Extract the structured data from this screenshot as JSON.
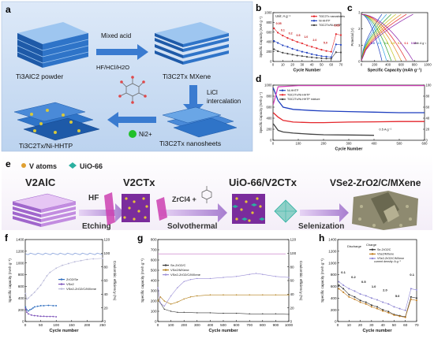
{
  "panel_labels": {
    "a": "a",
    "b": "b",
    "c": "c",
    "d": "d",
    "e": "e",
    "f": "f",
    "g": "g",
    "h": "h"
  },
  "panel_a": {
    "steps": {
      "powder": "Ti3AlC2 powder",
      "mxene": "Ti3C2Tx MXene",
      "nanosheets": "Ti3C2Tx nanosheets",
      "composite": "Ti3C2Tx/Ni-HHTP"
    },
    "arrows": {
      "acid_top": "Mixed acid",
      "acid_bottom": "HF/HCl/H2O",
      "licl_1": "LiCl",
      "licl_2": "intercalation",
      "ni_ion": "Ni2+"
    }
  },
  "panel_e": {
    "legend": {
      "v_atoms": "V atoms",
      "uio66": "UiO-66"
    },
    "steps": {
      "v2alc": "V2AlC",
      "v2ctx": "V2CTx",
      "uio_v2ctx": "UiO-66/V2CTx",
      "final": "VSe2-ZrO2/C/MXene"
    },
    "arrows": {
      "hf": "HF",
      "etching": "Etching",
      "zrcl4": "ZrCl4 +",
      "solvothermal": "Solvothermal",
      "selenization": "Selenization"
    }
  },
  "chart_data": [
    {
      "panel": "b",
      "type": "line",
      "unit_note": "Unit: A g⁻¹",
      "xlabel": "Cycle Number",
      "ylabel": "Specific Capacity (mAh g⁻¹)",
      "xlim": [
        0,
        70
      ],
      "ylim": [
        0,
        1000
      ],
      "xticks": [
        0,
        10,
        20,
        30,
        40,
        50,
        60,
        70
      ],
      "yticks": [
        0,
        200,
        400,
        600,
        800,
        1000
      ],
      "rate_labels": [
        "0.05",
        "0.1",
        "0.2",
        "0.5",
        "1.0",
        "2.0",
        "5.0",
        "0.05"
      ],
      "series": [
        {
          "name": "Ti3C2Tx nanosheets",
          "color": "#e4262b",
          "x": [
            1,
            5,
            10,
            15,
            20,
            25,
            30,
            35,
            40,
            45,
            50,
            55,
            60,
            65,
            70
          ],
          "y": [
            680,
            590,
            530,
            480,
            440,
            400,
            370,
            330,
            300,
            270,
            240,
            215,
            200,
            560,
            540
          ]
        },
        {
          "name": "Ni-HHTP",
          "color": "#1f3fbf",
          "x": [
            1,
            5,
            10,
            15,
            20,
            25,
            30,
            35,
            40,
            45,
            50,
            55,
            60,
            65,
            70
          ],
          "y": [
            420,
            380,
            330,
            300,
            260,
            230,
            200,
            180,
            150,
            130,
            110,
            100,
            90,
            350,
            340
          ]
        },
        {
          "name": "Ti3C2Tx/Ni-HHTP",
          "color": "#444444",
          "x": [
            1,
            5,
            10,
            15,
            20,
            25,
            30,
            35,
            40,
            45,
            50,
            55,
            60,
            65,
            70
          ],
          "y": [
            250,
            210,
            180,
            160,
            140,
            120,
            110,
            95,
            85,
            75,
            65,
            60,
            55,
            190,
            185
          ]
        }
      ]
    },
    {
      "panel": "c",
      "type": "line",
      "unit_note": "Unit: A g⁻¹",
      "xlabel": "Specific Capacity (mAh g⁻¹)",
      "ylabel": "Potential (V)",
      "xlim": [
        0,
        1000
      ],
      "ylim": [
        0,
        3
      ],
      "xticks": [
        0,
        200,
        400,
        600,
        800,
        1000
      ],
      "yticks": [
        0,
        1,
        2,
        3
      ],
      "rates": [
        "5.0",
        "2.0",
        "1.0",
        "0.5",
        "0.2",
        "0.1",
        "0.05"
      ],
      "colors": [
        "#1f3fbf",
        "#33a6e0",
        "#2ca02c",
        "#c4c418",
        "#e08a1e",
        "#e4262b",
        "#8a1ea8"
      ],
      "capacities": [
        310,
        380,
        450,
        520,
        600,
        680,
        780
      ]
    },
    {
      "panel": "d",
      "type": "line",
      "unit_note": "0.5 A g⁻¹",
      "xlabel": "Cycle Number",
      "ylabel": "Specific Capacity (mAh g⁻¹)",
      "y2label": "Coulombic Efficiency (%)",
      "xlim": [
        0,
        600
      ],
      "ylim": [
        0,
        1000
      ],
      "y2lim": [
        0,
        100
      ],
      "xticks": [
        0,
        100,
        200,
        300,
        400,
        500,
        600
      ],
      "yticks": [
        0,
        200,
        400,
        600,
        800,
        1000
      ],
      "y2ticks": [
        0,
        20,
        40,
        60,
        80,
        100
      ],
      "series": [
        {
          "name": "Ni-HHTP",
          "color": "#1f3fbf",
          "x": [
            1,
            20,
            40,
            80,
            150,
            200,
            300,
            400,
            500,
            600
          ],
          "y": [
            950,
            720,
            600,
            560,
            540,
            530,
            520,
            510,
            500,
            500
          ]
        },
        {
          "name": "Ti3C2Tx/Ni-HHTP",
          "color": "#e4262b",
          "x": [
            1,
            20,
            40,
            80,
            150,
            200,
            300,
            400,
            500,
            600
          ],
          "y": [
            500,
            420,
            360,
            330,
            320,
            320,
            330,
            335,
            340,
            340
          ]
        },
        {
          "name": "Ti3C2Tx/Ni-HHTP mixture",
          "color": "#444444",
          "x": [
            1,
            20,
            40,
            80,
            150,
            200,
            300,
            400
          ],
          "y": [
            300,
            180,
            150,
            130,
            110,
            100,
            95,
            90
          ]
        },
        {
          "name": "Coulombic efficiency",
          "color": "#d63ab9",
          "x": [
            1,
            20,
            100,
            200,
            300,
            400,
            500,
            600
          ],
          "y": [
            65,
            97,
            99,
            99,
            99,
            99,
            99,
            99
          ]
        }
      ]
    },
    {
      "panel": "f",
      "type": "line",
      "xlabel": "Cycle number",
      "ylabel": "Specific capacity (mAh g⁻¹)",
      "y2label": "Coulombic efficiency (%)",
      "xlim": [
        0,
        250
      ],
      "ylim": [
        0,
        1400
      ],
      "y2lim": [
        0,
        120
      ],
      "xticks": [
        0,
        50,
        100,
        150,
        200,
        250
      ],
      "yticks": [
        0,
        200,
        400,
        600,
        800,
        1000,
        1200,
        1400
      ],
      "y2ticks": [
        0,
        20,
        40,
        60,
        80,
        100,
        120
      ],
      "series": [
        {
          "name": "ZrO2/Se",
          "color": "#2f6ebf",
          "x": [
            1,
            5,
            10,
            15,
            20,
            25,
            30,
            40,
            50,
            60,
            75,
            90,
            100
          ],
          "y": [
            250,
            200,
            180,
            200,
            210,
            230,
            250,
            260,
            270,
            270,
            275,
            270,
            270
          ]
        },
        {
          "name": "VSe2",
          "color": "#7a4fb8",
          "x": [
            1,
            5,
            10,
            20,
            30,
            40,
            50,
            60,
            70,
            80,
            90,
            100
          ],
          "y": [
            220,
            160,
            130,
            110,
            100,
            95,
            90,
            90,
            85,
            85,
            85,
            80
          ]
        },
        {
          "name": "VSe2-ZrO2/C/MXene",
          "color": "#b8b8d8",
          "x": [
            1,
            5,
            10,
            20,
            30,
            40,
            50,
            60,
            70,
            80,
            100,
            120,
            140,
            160,
            180,
            200,
            220,
            250
          ],
          "y": [
            480,
            380,
            400,
            450,
            500,
            560,
            620,
            700,
            780,
            840,
            910,
            960,
            990,
            1020,
            1040,
            1060,
            1070,
            1080
          ]
        }
      ]
    },
    {
      "panel": "g",
      "type": "line",
      "xlabel": "Cycle number",
      "ylabel": "Specific capacity (mAh g⁻¹)",
      "y2label": "Coulombic efficiency (%)",
      "xlim": [
        0,
        1000
      ],
      "ylim": [
        0,
        800
      ],
      "y2lim": [
        0,
        120
      ],
      "xticks": [
        0,
        100,
        200,
        300,
        400,
        500,
        600,
        700,
        800,
        900,
        1000
      ],
      "yticks": [
        0,
        100,
        200,
        300,
        400,
        500,
        600,
        700,
        800
      ],
      "y2ticks": [
        0,
        20,
        40,
        60,
        80,
        100,
        120
      ],
      "series": [
        {
          "name": "Se-ZrO2/C",
          "color": "#3a3a3a",
          "x": [
            1,
            20,
            50,
            100,
            150,
            200,
            300,
            400,
            500,
            600,
            700,
            800,
            900,
            1000
          ],
          "y": [
            210,
            180,
            120,
            100,
            90,
            90,
            85,
            85,
            80,
            80,
            75,
            75,
            75,
            70
          ]
        },
        {
          "name": "VSe2/MXene",
          "color": "#b07a10",
          "x": [
            1,
            20,
            50,
            100,
            150,
            200,
            250,
            300,
            400,
            500,
            600,
            700,
            800,
            900,
            1000
          ],
          "y": [
            200,
            240,
            200,
            170,
            190,
            220,
            240,
            250,
            260,
            260,
            260,
            260,
            260,
            260,
            260
          ]
        },
        {
          "name": "VSe2-ZrO2/C/MXene",
          "color": "#9b8fd6",
          "x": [
            1,
            20,
            50,
            100,
            150,
            200,
            250,
            300,
            400,
            500,
            600,
            700,
            750,
            800,
            900,
            1000
          ],
          "y": [
            330,
            180,
            150,
            250,
            330,
            390,
            410,
            420,
            420,
            430,
            440,
            460,
            470,
            460,
            440,
            430
          ]
        }
      ]
    },
    {
      "panel": "h",
      "type": "line",
      "xlabel": "Cycle number",
      "ylabel": "Specific capacity (mAh g⁻¹)",
      "xlim": [
        0,
        70
      ],
      "ylim": [
        0,
        1400
      ],
      "xticks": [
        0,
        10,
        20,
        30,
        40,
        50,
        60,
        70
      ],
      "yticks": [
        0,
        200,
        400,
        600,
        800,
        1000,
        1200,
        1400
      ],
      "legend_headers": [
        "Discharge",
        "Charge"
      ],
      "rate_labels": [
        "0.1",
        "0.2",
        "0.5",
        "1.0",
        "2.0",
        "5.0",
        "0.1"
      ],
      "rate_note": "current density: A g⁻¹",
      "series": [
        {
          "name": "Se-ZrO2/C",
          "color": "#333333",
          "x": [
            1,
            5,
            10,
            15,
            20,
            25,
            30,
            35,
            40,
            45,
            50,
            55,
            60,
            65,
            70
          ],
          "y": [
            620,
            560,
            460,
            420,
            360,
            330,
            280,
            250,
            200,
            170,
            120,
            100,
            80,
            420,
            400
          ]
        },
        {
          "name": "VSe2/MXene",
          "color": "#c07a1a",
          "x": [
            1,
            5,
            10,
            15,
            20,
            25,
            30,
            35,
            40,
            45,
            50,
            55,
            60,
            65,
            70
          ],
          "y": [
            560,
            500,
            420,
            380,
            330,
            300,
            250,
            220,
            180,
            150,
            110,
            90,
            70,
            380,
            360
          ]
        },
        {
          "name": "VSe2-ZrO2/C/MXene",
          "color": "#8f87d4",
          "x": [
            1,
            5,
            10,
            15,
            20,
            25,
            30,
            35,
            40,
            45,
            50,
            55,
            60,
            65,
            70
          ],
          "y": [
            680,
            620,
            560,
            520,
            470,
            440,
            400,
            370,
            330,
            300,
            250,
            220,
            190,
            560,
            540
          ]
        }
      ]
    }
  ]
}
